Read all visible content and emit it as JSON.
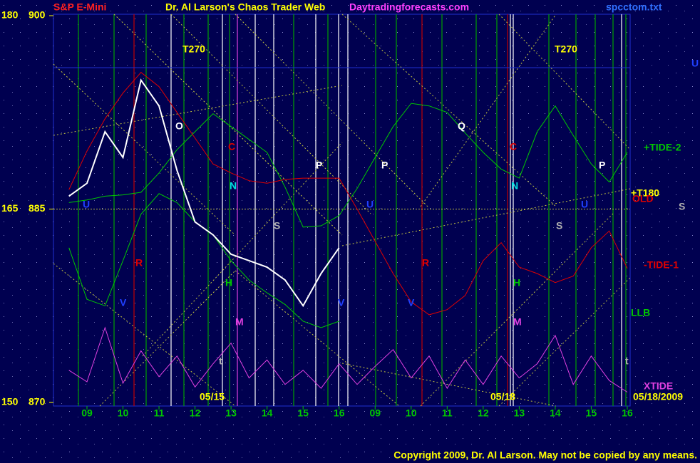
{
  "chart_data": {
    "type": "line",
    "title": "S&P E-Mini",
    "subtitle": "Dr. Al Larson's Chaos Trader Web",
    "site": "Daytradingforecasts.com",
    "file": "spcctom.txt",
    "copyright": "Copyright 2009, Dr. Al Larson. May not be copied by any means.",
    "dates": [
      "05/15",
      "05/18",
      "05/18/2009"
    ],
    "x": [
      8.5,
      9,
      9.5,
      10,
      10.5,
      11,
      11.5,
      12,
      12.5,
      13,
      13.5,
      14,
      14.5,
      15,
      15.5,
      16,
      16.5,
      17,
      17.5,
      18,
      18.5,
      19,
      19.5,
      20,
      20.5,
      21,
      21.5,
      22,
      22.5,
      23,
      23.5,
      24
    ],
    "xlim": [
      8.07,
      24.08
    ],
    "xticks": [
      {
        "value": 9,
        "label": "09"
      },
      10,
      11,
      12,
      13,
      14,
      15,
      16,
      {
        "value": 17,
        "label": "09"
      },
      {
        "value": 18,
        "label": "10"
      },
      {
        "value": 19,
        "label": "11"
      },
      {
        "value": 20,
        "label": "12"
      },
      {
        "value": 21,
        "label": "13"
      },
      {
        "value": 22,
        "label": "14"
      },
      {
        "value": 23,
        "label": "15"
      },
      {
        "value": 24,
        "label": "16"
      }
    ],
    "ylim": [
      870,
      900
    ],
    "yticks": [
      870,
      885,
      900
    ],
    "y2lim": [
      150,
      180
    ],
    "y2ticks": [
      150,
      165,
      180
    ],
    "series": [
      {
        "name": "+TIDE-2",
        "color": "#00c800",
        "values": [
          885.5,
          885.7,
          886,
          886.1,
          886.3,
          887.8,
          889.6,
          891,
          892.4,
          891.4,
          890.4,
          889.4,
          886.7,
          883.6,
          883.7,
          884.5,
          886.6,
          889,
          891.4,
          893.2,
          893,
          892.5,
          890.9,
          889.4,
          888.1,
          887.4,
          891,
          893,
          890.7,
          888.5,
          887.1,
          889.4
        ]
      },
      {
        "name": "-TIDE-1",
        "color": "#e00000",
        "values": [
          886.5,
          889.5,
          892,
          894,
          895.6,
          894.5,
          892.5,
          890.5,
          888.5,
          887.8,
          887.2,
          887,
          887.3,
          887.4,
          887.4,
          887.4,
          885,
          882.5,
          880,
          877.8,
          876.8,
          877.2,
          878.3,
          881,
          882.4,
          880.5,
          880,
          879.3,
          879.8,
          882,
          883.3,
          880.4
        ]
      },
      {
        "name": "LLB",
        "color": "#00c800",
        "values": [
          882,
          878,
          877.5,
          881,
          884.6,
          886.2,
          885.5,
          884,
          883,
          881,
          879.5,
          878.5,
          877.6,
          876.3,
          875.8,
          876.3,
          null,
          null,
          null,
          null,
          null,
          null,
          null,
          null,
          null,
          null,
          null,
          null,
          null,
          null,
          null,
          null
        ]
      },
      {
        "name": "XTIDE",
        "color": "#e040e0",
        "values": [
          872.5,
          871.6,
          875.8,
          871.5,
          874,
          872,
          873.6,
          871.2,
          873,
          874.6,
          871.9,
          873.3,
          871.4,
          872.5,
          871.1,
          873,
          871.4,
          872.8,
          874.1,
          871.9,
          873.6,
          871.1,
          873.3,
          871.4,
          873.6,
          871.9,
          873,
          875.2,
          871.4,
          873.6,
          871.7,
          870.8
        ]
      },
      {
        "color": "#ffffff",
        "values": [
          886,
          887,
          891,
          889,
          895,
          893,
          888,
          884,
          883,
          881.5,
          881,
          880.5,
          879.5,
          877.5,
          880,
          882,
          null,
          null,
          null,
          null,
          null,
          null,
          null,
          null,
          null,
          null,
          null,
          null,
          null,
          null,
          null,
          null
        ]
      }
    ],
    "annotations": [
      {
        "text": "T270",
        "color": "#ffff00"
      },
      {
        "text": "T270",
        "color": "#ffff00"
      },
      {
        "text": "O",
        "color": "#ffffff"
      },
      {
        "text": "Q",
        "color": "#ffffff"
      },
      {
        "text": "C",
        "color": "#e00000"
      },
      {
        "text": "C",
        "color": "#e00000"
      },
      {
        "text": "N",
        "color": "#00e0e0"
      },
      {
        "text": "N",
        "color": "#00e0e0"
      },
      {
        "text": "P",
        "color": "#ffffff"
      },
      {
        "text": "P",
        "color": "#ffffff"
      },
      {
        "text": "P",
        "color": "#ffffff"
      },
      {
        "text": "S",
        "color": "#b0b0b0"
      },
      {
        "text": "S",
        "color": "#b0b0b0"
      },
      {
        "text": "S",
        "color": "#b0b0b0"
      },
      {
        "text": "R",
        "color": "#e00000"
      },
      {
        "text": "R",
        "color": "#e00000"
      },
      {
        "text": "H",
        "color": "#00c800"
      },
      {
        "text": "H",
        "color": "#00c800"
      },
      {
        "text": "V",
        "color": "#2040ff"
      },
      {
        "text": "V",
        "color": "#2040ff"
      },
      {
        "text": "V",
        "color": "#2040ff"
      },
      {
        "text": "M",
        "color": "#e040e0"
      },
      {
        "text": "M",
        "color": "#e040e0"
      },
      {
        "text": "t",
        "color": "#b0b0b0"
      },
      {
        "text": "t",
        "color": "#b0b0b0"
      },
      {
        "text": "U",
        "color": "#2040ff"
      },
      {
        "text": "U",
        "color": "#2040ff"
      },
      {
        "text": "U",
        "color": "#2040ff"
      },
      {
        "text": "U",
        "color": "#2040ff"
      },
      {
        "text": "+T180",
        "color": "#ffff00"
      },
      {
        "text": "OLD",
        "color": "#e00000"
      }
    ]
  }
}
